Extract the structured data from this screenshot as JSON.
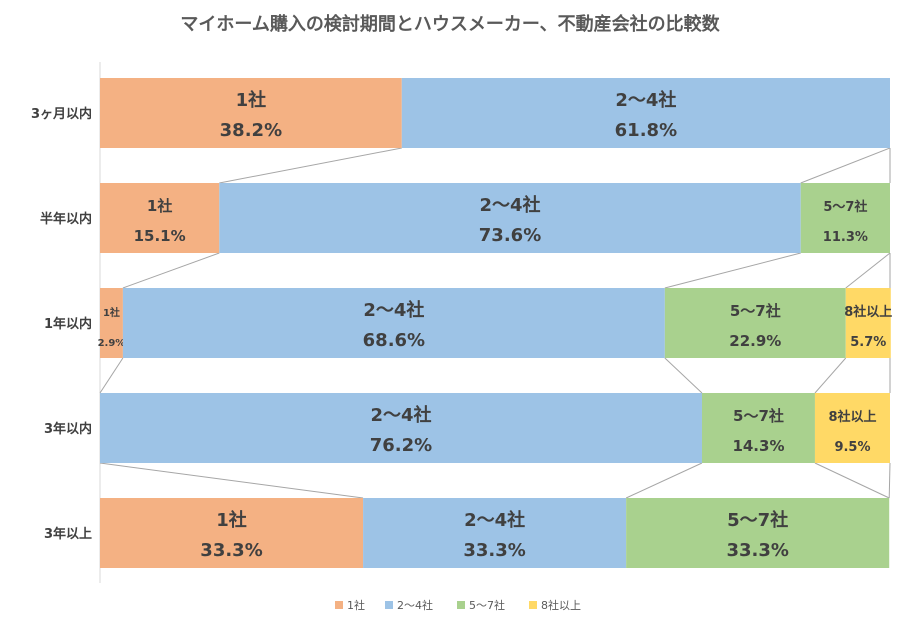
{
  "chart_data": {
    "type": "bar",
    "orientation": "horizontal-stacked-100",
    "title": "マイホーム購入の検討期間とハウスメーカー、不動産会社の比較数",
    "categories": [
      "3ヶ月以内",
      "半年以内",
      "1年以内",
      "3年以内",
      "3年以上"
    ],
    "series": [
      {
        "name": "1社",
        "color": "#F4B183",
        "values": [
          38.2,
          15.1,
          2.9,
          0,
          33.3
        ]
      },
      {
        "name": "2〜4社",
        "color": "#9DC3E6",
        "values": [
          61.8,
          73.6,
          68.6,
          76.2,
          33.3
        ]
      },
      {
        "name": "5〜7社",
        "color": "#A9D18E",
        "values": [
          0,
          11.3,
          22.9,
          14.3,
          33.3
        ]
      },
      {
        "name": "8社以上",
        "color": "#FFD966",
        "values": [
          0,
          0,
          5.7,
          9.5,
          0
        ]
      }
    ],
    "value_unit": "%",
    "xlim": [
      0,
      100
    ],
    "series_lines": true,
    "grid": false,
    "legend": "bottom"
  }
}
